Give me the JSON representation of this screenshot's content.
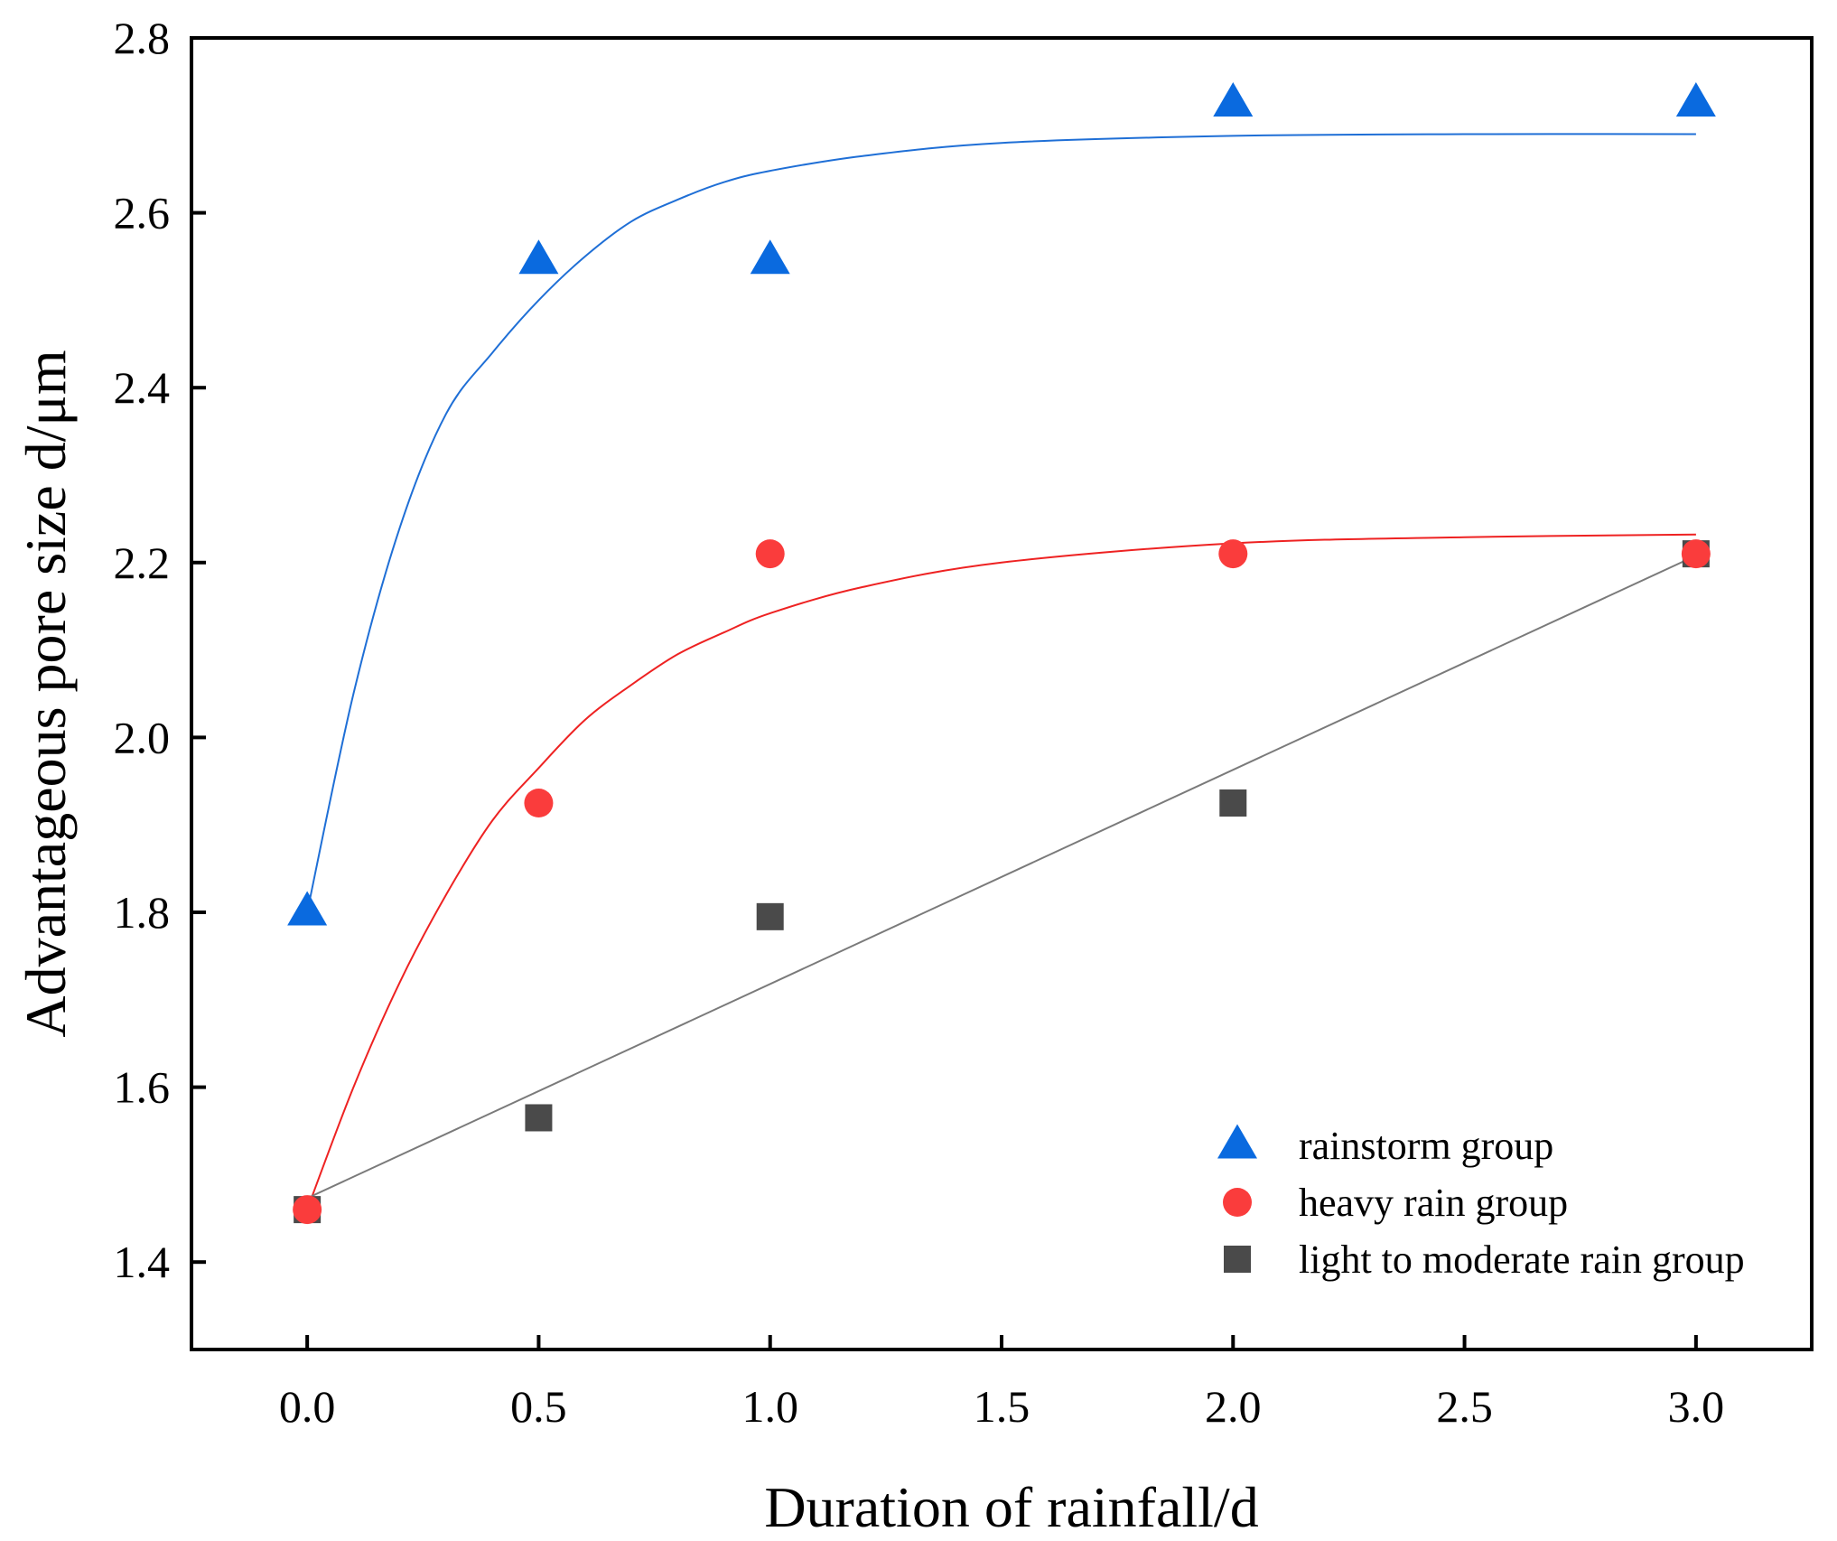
{
  "chart_data": {
    "type": "scatter",
    "xlabel": "Duration of rainfall/d",
    "ylabel": "Advantageous pore size d/μm",
    "xlim": [
      -0.25,
      3.25
    ],
    "ylim": [
      1.3,
      2.8
    ],
    "x_ticks": [
      "0.0",
      "0.5",
      "1.0",
      "1.5",
      "2.0",
      "2.5",
      "3.0"
    ],
    "y_ticks": [
      "1.4",
      "1.6",
      "1.8",
      "2.0",
      "2.2",
      "2.4",
      "2.6",
      "2.8"
    ],
    "grid": false,
    "legend_position": "bottom-right",
    "series": [
      {
        "name": "rainstorm group",
        "marker": "triangle",
        "color": "#0a6adf",
        "x": [
          0,
          0.5,
          1,
          2,
          3
        ],
        "y": [
          1.8,
          2.545,
          2.545,
          2.725,
          2.725
        ],
        "fit": "exponential",
        "fit_points": [
          [
            0,
            1.8
          ],
          [
            0.1,
            2.05
          ],
          [
            0.2,
            2.24
          ],
          [
            0.3,
            2.37
          ],
          [
            0.4,
            2.44
          ],
          [
            0.5,
            2.5
          ],
          [
            0.6,
            2.55
          ],
          [
            0.7,
            2.59
          ],
          [
            0.8,
            2.615
          ],
          [
            0.9,
            2.635
          ],
          [
            1.0,
            2.648
          ],
          [
            1.2,
            2.665
          ],
          [
            1.5,
            2.68
          ],
          [
            2.0,
            2.688
          ],
          [
            2.5,
            2.69
          ],
          [
            3.0,
            2.69
          ]
        ]
      },
      {
        "name": "heavy rain group",
        "marker": "circle",
        "color": "#fa3c3c",
        "x": [
          0,
          0.5,
          1,
          2,
          3
        ],
        "y": [
          1.46,
          1.925,
          2.21,
          2.21,
          2.21
        ],
        "fit": "exponential",
        "fit_points": [
          [
            0,
            1.46
          ],
          [
            0.1,
            1.6
          ],
          [
            0.2,
            1.72
          ],
          [
            0.3,
            1.82
          ],
          [
            0.4,
            1.905
          ],
          [
            0.5,
            1.965
          ],
          [
            0.6,
            2.02
          ],
          [
            0.7,
            2.06
          ],
          [
            0.8,
            2.095
          ],
          [
            0.9,
            2.12
          ],
          [
            1.0,
            2.142
          ],
          [
            1.2,
            2.172
          ],
          [
            1.5,
            2.2
          ],
          [
            2.0,
            2.222
          ],
          [
            2.5,
            2.229
          ],
          [
            3.0,
            2.232
          ]
        ]
      },
      {
        "name": "light to moderate rain group",
        "marker": "square",
        "color": "#4a4a4a",
        "x": [
          0,
          0.5,
          1,
          2,
          3
        ],
        "y": [
          1.46,
          1.565,
          1.795,
          1.925,
          2.21
        ],
        "fit": "linear",
        "fit_points": [
          [
            0,
            1.473
          ],
          [
            3.0,
            2.208
          ]
        ]
      }
    ]
  },
  "colors": {
    "rainstorm_fit": "#1f6fd6",
    "heavy_fit": "#ee2222",
    "light_fit": "#7a7a7a",
    "axis": "#000000"
  }
}
